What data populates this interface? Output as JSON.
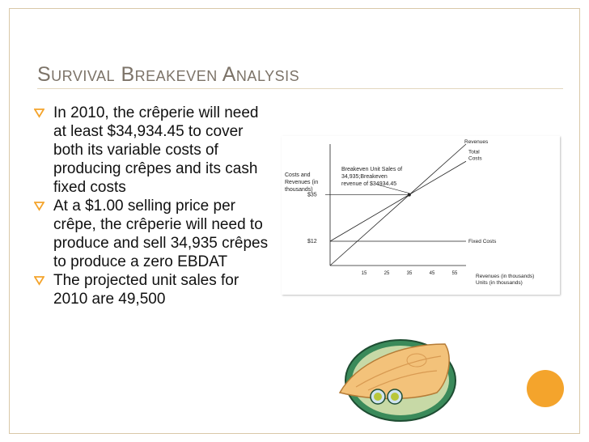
{
  "slide": {
    "title": "Survival Breakeven Analysis",
    "bullets": [
      "In 2010, the crêperie will need at least $34,934.45 to cover both its variable costs of producing crêpes and its cash fixed costs",
      "At a $1.00 selling price per crêpe, the crêperie will need to produce and sell 34,935 crêpes to produce a zero EBDAT",
      "The projected unit sales for 2010 are 49,500"
    ],
    "accent_color": "#f4a42c",
    "title_color": "#7c7368",
    "bullet_icon": "bullet-triangle-icon"
  },
  "chart_data": {
    "type": "line",
    "ylabel": "Costs and Revenues (in thousands)",
    "xlabel": "Revenues (in thousands) Units (in thousands)",
    "x_ticks": [
      "15",
      "25",
      "35",
      "45",
      "55"
    ],
    "y_ticks": [
      "$35",
      "$12"
    ],
    "annotation": "Breakeven Unit Sales of 34,935;Breakeven revenue of $34934.45",
    "series": [
      {
        "name": "Revenues",
        "x": [
          0,
          60
        ],
        "y": [
          0,
          60
        ]
      },
      {
        "name": "Total Costs",
        "x": [
          0,
          60
        ],
        "y": [
          12,
          51.5
        ]
      },
      {
        "name": "Fixed Costs",
        "x": [
          0,
          60
        ],
        "y": [
          12,
          12
        ]
      }
    ],
    "breakeven": {
      "x": 34.935,
      "y": 34.93
    },
    "xlim": [
      0,
      60
    ],
    "ylim": [
      0,
      60
    ],
    "grid": false,
    "legend": "none"
  }
}
